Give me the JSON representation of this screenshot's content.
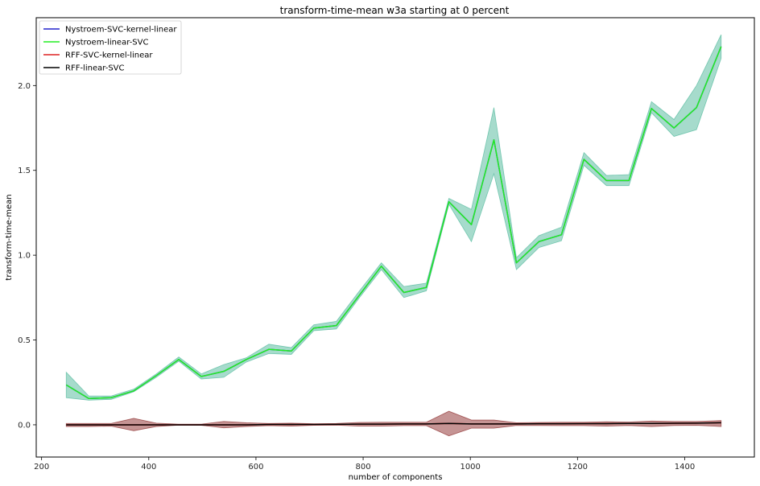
{
  "chart_data": {
    "type": "line",
    "title": "transform-time-mean w3a starting at 0 percent",
    "xlabel": "number of components",
    "ylabel": "transform-time-mean",
    "xlim": [
      190,
      1530
    ],
    "ylim": [
      -0.19,
      2.4
    ],
    "xticks": [
      200,
      400,
      600,
      800,
      1000,
      1200,
      1400
    ],
    "yticks": [
      0.0,
      0.5,
      1.0,
      1.5,
      2.0
    ],
    "xtick_labels": [
      "200",
      "400",
      "600",
      "800",
      "1000",
      "1200",
      "1400"
    ],
    "ytick_labels": [
      "0.0",
      "0.5",
      "1.0",
      "1.5",
      "2.0"
    ],
    "grid": false,
    "legend_position": "top-left",
    "x": [
      246,
      288,
      330,
      372,
      414,
      456,
      498,
      540,
      582,
      624,
      666,
      708,
      750,
      792,
      834,
      876,
      918,
      960,
      1002,
      1044,
      1086,
      1128,
      1170,
      1212,
      1254,
      1296,
      1338,
      1380,
      1422,
      1468
    ],
    "series": [
      {
        "name": "Nystroem-SVC-kernel-linear",
        "color": "#2222cc",
        "values": [
          0.235,
          0.155,
          0.16,
          0.2,
          0.29,
          0.385,
          0.285,
          0.315,
          0.385,
          0.445,
          0.435,
          0.57,
          0.585,
          0.76,
          0.935,
          0.78,
          0.81,
          1.315,
          1.18,
          1.68,
          0.955,
          1.08,
          1.12,
          1.565,
          1.44,
          1.44,
          1.865,
          1.75,
          1.87,
          2.23
        ],
        "band_lower": [
          0.16,
          0.145,
          0.15,
          0.195,
          0.28,
          0.375,
          0.27,
          0.28,
          0.37,
          0.42,
          0.415,
          0.555,
          0.565,
          0.745,
          0.915,
          0.75,
          0.79,
          1.3,
          1.08,
          1.48,
          0.915,
          1.045,
          1.085,
          1.53,
          1.41,
          1.41,
          1.84,
          1.7,
          1.74,
          2.16
        ],
        "band_upper": [
          0.31,
          0.17,
          0.17,
          0.21,
          0.3,
          0.4,
          0.3,
          0.355,
          0.395,
          0.475,
          0.455,
          0.59,
          0.61,
          0.785,
          0.955,
          0.815,
          0.835,
          1.335,
          1.27,
          1.87,
          0.985,
          1.115,
          1.165,
          1.605,
          1.47,
          1.475,
          1.905,
          1.8,
          2.0,
          2.3
        ]
      },
      {
        "name": "Nystroem-linear-SVC",
        "color": "#22ee22",
        "values": [
          0.235,
          0.155,
          0.16,
          0.2,
          0.29,
          0.385,
          0.285,
          0.315,
          0.385,
          0.445,
          0.435,
          0.57,
          0.585,
          0.76,
          0.935,
          0.78,
          0.81,
          1.315,
          1.18,
          1.68,
          0.955,
          1.08,
          1.12,
          1.565,
          1.44,
          1.44,
          1.865,
          1.75,
          1.87,
          2.23
        ]
      },
      {
        "name": "RFF-SVC-kernel-linear",
        "color": "#dd2222",
        "values": [
          0.0,
          0.0,
          0.0,
          0.0,
          0.0,
          0.0,
          0.0,
          0.0,
          0.0,
          0.002,
          0.002,
          0.002,
          0.003,
          0.004,
          0.004,
          0.005,
          0.005,
          0.008,
          0.005,
          0.005,
          0.005,
          0.006,
          0.006,
          0.007,
          0.007,
          0.008,
          0.008,
          0.009,
          0.01,
          0.012
        ],
        "band_lower": [
          -0.01,
          -0.01,
          -0.008,
          -0.035,
          -0.01,
          -0.002,
          -0.003,
          -0.018,
          -0.01,
          -0.005,
          -0.008,
          -0.003,
          -0.002,
          -0.008,
          -0.008,
          -0.005,
          -0.005,
          -0.065,
          -0.02,
          -0.02,
          -0.004,
          -0.004,
          -0.005,
          -0.005,
          -0.008,
          -0.004,
          -0.01,
          -0.004,
          -0.003,
          -0.01
        ],
        "band_upper": [
          0.008,
          0.008,
          0.008,
          0.038,
          0.01,
          0.004,
          0.004,
          0.02,
          0.012,
          0.008,
          0.01,
          0.006,
          0.008,
          0.014,
          0.015,
          0.015,
          0.015,
          0.08,
          0.028,
          0.028,
          0.012,
          0.014,
          0.015,
          0.015,
          0.018,
          0.016,
          0.022,
          0.02,
          0.02,
          0.025
        ]
      },
      {
        "name": "RFF-linear-SVC",
        "color": "#000000",
        "values": [
          0.0,
          0.0,
          0.0,
          0.0,
          0.0,
          0.0,
          0.0,
          0.0,
          0.0,
          0.002,
          0.002,
          0.002,
          0.003,
          0.004,
          0.004,
          0.005,
          0.005,
          0.008,
          0.005,
          0.005,
          0.005,
          0.006,
          0.006,
          0.007,
          0.007,
          0.008,
          0.008,
          0.009,
          0.01,
          0.012
        ]
      }
    ],
    "band_colors": {
      "Nystroem-SVC-kernel-linear": "#4db89a",
      "RFF-SVC-kernel-linear": "#8b2a2a"
    }
  }
}
